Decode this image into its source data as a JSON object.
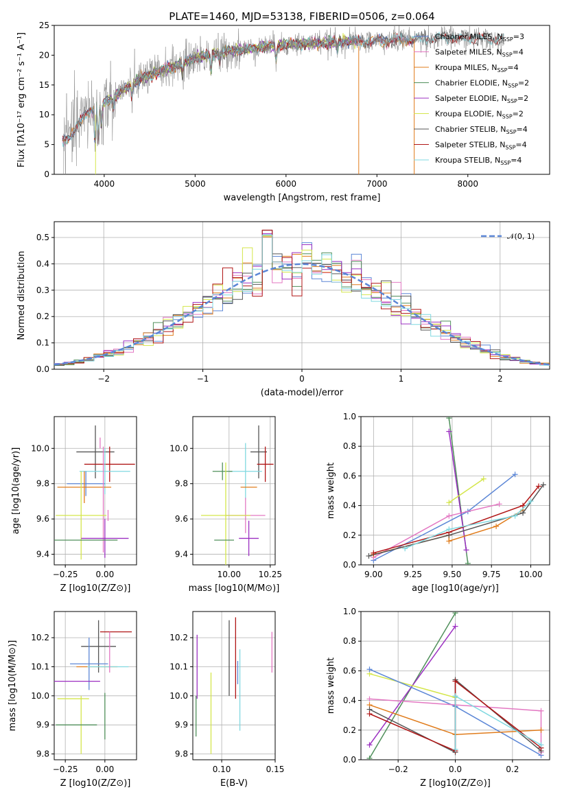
{
  "figure": {
    "title": "PLATE=1460, MJD=53138, FIBERID=0506, z=0.064"
  },
  "colors": {
    "chabrier_miles": "#5b86d6",
    "salpeter_miles": "#e377c2",
    "kroupa_miles": "#e07b1a",
    "chabrier_elodie": "#4f8f5a",
    "salpeter_elodie": "#9b2fc1",
    "kroupa_elodie": "#d4e64a",
    "chabrier_stelib": "#555555",
    "salpeter_stelib": "#b01515",
    "kroupa_stelib": "#7fd8e0",
    "data_gray": "#808080",
    "normal": "#5b86d6"
  },
  "chart_data": [
    {
      "id": "spectrum",
      "type": "line",
      "title": "PLATE=1460, MJD=53138, FIBERID=0506, z=0.064",
      "xlabel": "wavelength [Angstrom, rest frame]",
      "ylabel": "Flux [fλ10⁻¹⁷ erg cm⁻² s⁻¹ A⁻¹]",
      "xlim": [
        3450,
        8900
      ],
      "ylim": [
        0,
        25
      ],
      "xticks": [
        4000,
        5000,
        6000,
        7000,
        8000
      ],
      "yticks": [
        0,
        5,
        10,
        15,
        20,
        25
      ],
      "grid": false,
      "legend_position": "upper right",
      "continuum": {
        "x": [
          3550,
          3700,
          3850,
          3950,
          4050,
          4200,
          4400,
          4600,
          4800,
          5000,
          5200,
          5400,
          5600,
          5800,
          6000,
          6300,
          6600,
          6900,
          7200,
          7500,
          7800,
          8100,
          8400
        ],
        "y": [
          5.5,
          8.0,
          11.0,
          11.5,
          12.5,
          14.0,
          16.0,
          17.2,
          18.3,
          19.5,
          20.2,
          20.8,
          21.0,
          21.5,
          21.8,
          22.0,
          22.3,
          22.3,
          22.5,
          22.8,
          22.9,
          22.8,
          22.5
        ]
      },
      "legend": [
        {
          "label": "Chabrier MILES, N_SSP=3",
          "text": "Chabrier MILES, N",
          "sub": "SSP",
          "tail": "=3",
          "color_key": "chabrier_miles"
        },
        {
          "label": "Salpeter MILES, N_SSP=4",
          "text": "Salpeter MILES, N",
          "sub": "SSP",
          "tail": "=4",
          "color_key": "salpeter_miles"
        },
        {
          "label": "Kroupa MILES, N_SSP=4",
          "text": "Kroupa MILES, N",
          "sub": "SSP",
          "tail": "=4",
          "color_key": "kroupa_miles"
        },
        {
          "label": "Chabrier ELODIE, N_SSP=2",
          "text": "Chabrier ELODIE, N",
          "sub": "SSP",
          "tail": "=2",
          "color_key": "chabrier_elodie"
        },
        {
          "label": "Salpeter ELODIE, N_SSP=2",
          "text": "Salpeter ELODIE, N",
          "sub": "SSP",
          "tail": "=2",
          "color_key": "salpeter_elodie"
        },
        {
          "label": "Kroupa ELODIE, N_SSP=2",
          "text": "Kroupa ELODIE, N",
          "sub": "SSP",
          "tail": "=2",
          "color_key": "kroupa_elodie"
        },
        {
          "label": "Chabrier STELIB, N_SSP=4",
          "text": "Chabrier STELIB, N",
          "sub": "SSP",
          "tail": "=4",
          "color_key": "chabrier_stelib"
        },
        {
          "label": "Salpeter STELIB, N_SSP=4",
          "text": "Salpeter STELIB, N",
          "sub": "SSP",
          "tail": "=4",
          "color_key": "salpeter_stelib"
        },
        {
          "label": "Kroupa STELIB, N_SSP=4",
          "text": "Kroupa STELIB, N",
          "sub": "SSP",
          "tail": "=4",
          "color_key": "kroupa_stelib"
        }
      ]
    },
    {
      "id": "residuals",
      "type": "histogram",
      "xlabel": "(data-model)/error",
      "ylabel": "Normed distribution",
      "xlim": [
        -2.5,
        2.5
      ],
      "ylim": [
        0,
        0.56
      ],
      "xticks": [
        -2,
        -1,
        0,
        1,
        2
      ],
      "yticks": [
        0.0,
        0.1,
        0.2,
        0.3,
        0.4,
        0.5
      ],
      "grid": true,
      "bin_width": 0.1,
      "legend": {
        "label": "𝒩(0, 1)",
        "position": "upper right"
      },
      "normal_curve": {
        "mean": 0,
        "sigma": 1,
        "style": "dashed"
      }
    },
    {
      "id": "age_vs_Z",
      "type": "errorbar",
      "xlabel": "Z [log10(Z/Z⊙)]",
      "ylabel": "age [log10(age/yr)]",
      "xlim": [
        -0.32,
        0.2
      ],
      "ylim": [
        9.34,
        10.18
      ],
      "xticks": [
        -0.25,
        0.0
      ],
      "xtick_labels": [
        "−0.25",
        "0.00"
      ],
      "yticks": [
        9.4,
        9.6,
        9.8,
        10.0
      ],
      "grid": true,
      "points": [
        {
          "x": -0.03,
          "y": 10.03,
          "xerr": 0.0,
          "yerr": 0.0,
          "color_key": "salpeter_miles"
        },
        {
          "x": -0.06,
          "y": 9.98,
          "xerr": 0.12,
          "yerr": 0.15,
          "color_key": "chabrier_stelib"
        },
        {
          "x": 0.03,
          "y": 9.91,
          "xerr": 0.16,
          "yerr": 0.1,
          "color_key": "salpeter_stelib"
        },
        {
          "x": 0.0,
          "y": 9.87,
          "xerr": 0.16,
          "yerr": 0.13,
          "color_key": "kroupa_stelib"
        },
        {
          "x": -0.12,
          "y": 9.8,
          "xerr": 0.12,
          "yerr": 0.07,
          "color_key": "chabrier_miles"
        },
        {
          "x": -0.13,
          "y": 9.78,
          "xerr": 0.17,
          "yerr": 0.09,
          "color_key": "kroupa_miles"
        },
        {
          "x": -0.01,
          "y": 9.71,
          "xerr": 0.0,
          "yerr": 0.3,
          "color_key": "salpeter_miles"
        },
        {
          "x": -0.15,
          "y": 9.62,
          "xerr": 0.16,
          "yerr": 0.25,
          "color_key": "kroupa_elodie"
        },
        {
          "x": 0.02,
          "y": 9.62,
          "xerr": 0.0,
          "yerr": 0.0,
          "color_key": "salpeter_miles"
        },
        {
          "x": 0.0,
          "y": 9.49,
          "xerr": 0.15,
          "yerr": 0.11,
          "color_key": "salpeter_elodie"
        },
        {
          "x": -0.12,
          "y": 9.48,
          "xerr": 0.2,
          "yerr": 0.0,
          "color_key": "chabrier_elodie"
        }
      ]
    },
    {
      "id": "age_vs_mass",
      "type": "errorbar",
      "xlabel": "mass [log10(M/M⊙)]",
      "ylabel": "",
      "xlim": [
        9.78,
        10.28
      ],
      "ylim": [
        9.34,
        10.18
      ],
      "xticks": [
        10.0,
        10.25
      ],
      "xtick_labels": [
        "10.00",
        "10.25"
      ],
      "yticks": [
        9.4,
        9.6,
        9.8,
        10.0
      ],
      "grid": true,
      "points": [
        {
          "x": 10.18,
          "y": 9.98,
          "xerr": 0.05,
          "yerr": 0.15,
          "color_key": "chabrier_stelib"
        },
        {
          "x": 10.22,
          "y": 9.91,
          "xerr": 0.05,
          "yerr": 0.1,
          "color_key": "salpeter_stelib"
        },
        {
          "x": 10.1,
          "y": 9.87,
          "xerr": 0.1,
          "yerr": 0.16,
          "color_key": "kroupa_stelib"
        },
        {
          "x": 9.96,
          "y": 9.87,
          "xerr": 0.06,
          "yerr": 0.05,
          "color_key": "chabrier_elodie"
        },
        {
          "x": 10.12,
          "y": 9.78,
          "xerr": 0.05,
          "yerr": 0.0,
          "color_key": "kroupa_miles"
        },
        {
          "x": 10.1,
          "y": 9.62,
          "xerr": 0.12,
          "yerr": 0.1,
          "color_key": "salpeter_miles"
        },
        {
          "x": 9.98,
          "y": 9.62,
          "xerr": 0.15,
          "yerr": 0.3,
          "color_key": "kroupa_elodie"
        },
        {
          "x": 10.12,
          "y": 9.49,
          "xerr": 0.06,
          "yerr": 0.1,
          "color_key": "salpeter_elodie"
        },
        {
          "x": 9.97,
          "y": 9.48,
          "xerr": 0.06,
          "yerr": 0.0,
          "color_key": "chabrier_elodie"
        }
      ]
    },
    {
      "id": "massweight_vs_age",
      "type": "line",
      "xlabel": "age [log10(age/yr)]",
      "ylabel": "mass weight",
      "xlim": [
        8.92,
        10.12
      ],
      "ylim": [
        0.0,
        1.0
      ],
      "xticks": [
        9.0,
        9.25,
        9.5,
        9.75,
        10.0
      ],
      "xtick_labels": [
        "9.00",
        "9.25",
        "9.50",
        "9.75",
        "10.00"
      ],
      "yticks": [
        0.0,
        0.2,
        0.4,
        0.6,
        0.8,
        1.0
      ],
      "grid": true,
      "series": [
        {
          "color_key": "chabrier_elodie",
          "x": [
            9.48,
            9.6
          ],
          "y": [
            0.99,
            0.01
          ]
        },
        {
          "color_key": "salpeter_elodie",
          "x": [
            9.48,
            9.59
          ],
          "y": [
            0.9,
            0.1
          ]
        },
        {
          "color_key": "kroupa_elodie",
          "x": [
            9.48,
            9.7
          ],
          "y": [
            0.42,
            0.58
          ]
        },
        {
          "color_key": "chabrier_miles",
          "x": [
            9.0,
            9.6,
            9.9
          ],
          "y": [
            0.03,
            0.36,
            0.61
          ]
        },
        {
          "color_key": "salpeter_miles",
          "x": [
            9.0,
            9.48,
            9.8
          ],
          "y": [
            0.05,
            0.33,
            0.41
          ]
        },
        {
          "color_key": "kroupa_miles",
          "x": [
            9.0,
            9.48,
            9.48,
            9.78,
            9.95
          ],
          "y": [
            0.07,
            0.2,
            0.16,
            0.26,
            0.37
          ]
        },
        {
          "color_key": "chabrier_stelib",
          "x": [
            8.97,
            9.48,
            9.95,
            10.08
          ],
          "y": [
            0.06,
            0.2,
            0.35,
            0.54
          ]
        },
        {
          "color_key": "salpeter_stelib",
          "x": [
            9.0,
            9.48,
            9.95,
            10.05
          ],
          "y": [
            0.08,
            0.22,
            0.4,
            0.53
          ]
        },
        {
          "color_key": "kroupa_stelib",
          "x": [
            9.2,
            9.48,
            9.9,
            10.0
          ],
          "y": [
            0.11,
            0.24,
            0.33,
            0.43
          ]
        }
      ]
    },
    {
      "id": "mass_vs_Z",
      "type": "errorbar",
      "xlabel": "Z [log10(Z/Z⊙)]",
      "ylabel": "mass [log10(M/M⊙)]",
      "xlim": [
        -0.32,
        0.2
      ],
      "ylim": [
        9.78,
        10.29
      ],
      "xticks": [
        -0.25,
        0.0
      ],
      "xtick_labels": [
        "−0.25",
        "0.00"
      ],
      "yticks": [
        9.8,
        9.9,
        10.0,
        10.1,
        10.2
      ],
      "grid": true,
      "points": [
        {
          "x": 0.07,
          "y": 10.22,
          "xerr": 0.1,
          "yerr": 0.0,
          "color_key": "salpeter_stelib"
        },
        {
          "x": -0.04,
          "y": 10.17,
          "xerr": 0.11,
          "yerr": 0.09,
          "color_key": "chabrier_stelib"
        },
        {
          "x": -0.1,
          "y": 10.11,
          "xerr": 0.12,
          "yerr": 0.09,
          "color_key": "chabrier_miles"
        },
        {
          "x": -0.05,
          "y": 10.1,
          "xerr": 0.13,
          "yerr": 0.0,
          "color_key": "kroupa_miles"
        },
        {
          "x": 0.02,
          "y": 10.1,
          "xerr": 0.13,
          "yerr": 0.0,
          "color_key": "kroupa_stelib"
        },
        {
          "x": 0.03,
          "y": 10.15,
          "xerr": 0.0,
          "yerr": 0.07,
          "color_key": "salpeter_miles"
        },
        {
          "x": -0.18,
          "y": 10.05,
          "xerr": 0.15,
          "yerr": 0.0,
          "color_key": "salpeter_elodie"
        },
        {
          "x": -0.2,
          "y": 9.99,
          "xerr": 0.1,
          "yerr": 0.0,
          "color_key": "kroupa_elodie"
        },
        {
          "x": -0.15,
          "y": 9.9,
          "xerr": 0.0,
          "yerr": 0.1,
          "color_key": "kroupa_elodie"
        },
        {
          "x": -0.18,
          "y": 9.9,
          "xerr": 0.13,
          "yerr": 0.0,
          "color_key": "chabrier_elodie"
        },
        {
          "x": 0.0,
          "y": 9.93,
          "xerr": 0.0,
          "yerr": 0.08,
          "color_key": "chabrier_elodie"
        }
      ]
    },
    {
      "id": "mass_vs_EBV",
      "type": "errorbar",
      "xlabel": "E(B-V)",
      "ylabel": "",
      "xlim": [
        0.073,
        0.15
      ],
      "ylim": [
        9.78,
        10.29
      ],
      "xticks": [
        0.1,
        0.15
      ],
      "xtick_labels": [
        "0.10",
        "0.15"
      ],
      "yticks": [
        9.8,
        9.9,
        10.0,
        10.1,
        10.2
      ],
      "grid": true,
      "points": [
        {
          "x": 0.077,
          "y": 10.1,
          "xerr": 0.0,
          "yerr": 0.11,
          "color_key": "salpeter_elodie"
        },
        {
          "x": 0.076,
          "y": 9.93,
          "xerr": 0.0,
          "yerr": 0.07,
          "color_key": "chabrier_elodie"
        },
        {
          "x": 0.09,
          "y": 9.94,
          "xerr": 0.0,
          "yerr": 0.14,
          "color_key": "kroupa_elodie"
        },
        {
          "x": 0.107,
          "y": 10.13,
          "xerr": 0.0,
          "yerr": 0.13,
          "color_key": "chabrier_stelib"
        },
        {
          "x": 0.113,
          "y": 10.13,
          "xerr": 0.0,
          "yerr": 0.14,
          "color_key": "salpeter_stelib"
        },
        {
          "x": 0.115,
          "y": 10.08,
          "xerr": 0.0,
          "yerr": 0.04,
          "color_key": "chabrier_miles"
        },
        {
          "x": 0.117,
          "y": 10.02,
          "xerr": 0.0,
          "yerr": 0.14,
          "color_key": "kroupa_stelib"
        },
        {
          "x": 0.147,
          "y": 10.15,
          "xerr": 0.0,
          "yerr": 0.07,
          "color_key": "salpeter_miles"
        }
      ]
    },
    {
      "id": "massweight_vs_Z",
      "type": "line",
      "xlabel": "Z [log10(Z/Z⊙)]",
      "ylabel": "mass weight",
      "xlim": [
        -0.33,
        0.33
      ],
      "ylim": [
        0.0,
        1.0
      ],
      "xticks": [
        -0.2,
        0.0,
        0.2
      ],
      "xtick_labels": [
        "−0.2",
        "0.0",
        "0.2"
      ],
      "yticks": [
        0.0,
        0.2,
        0.4,
        0.6,
        0.8,
        1.0
      ],
      "grid": true,
      "series": [
        {
          "color_key": "chabrier_elodie",
          "x": [
            -0.3,
            0.0
          ],
          "y": [
            0.01,
            0.99
          ]
        },
        {
          "color_key": "salpeter_elodie",
          "x": [
            -0.3,
            0.0
          ],
          "y": [
            0.1,
            0.9
          ]
        },
        {
          "color_key": "kroupa_elodie",
          "x": [
            -0.3,
            0.0
          ],
          "y": [
            0.58,
            0.42
          ]
        },
        {
          "color_key": "chabrier_miles",
          "x": [
            -0.3,
            0.0,
            0.3
          ],
          "y": [
            0.61,
            0.36,
            0.03
          ]
        },
        {
          "color_key": "salpeter_miles",
          "x": [
            -0.3,
            0.3,
            0.3
          ],
          "y": [
            0.41,
            0.33,
            0.05
          ]
        },
        {
          "color_key": "kroupa_miles",
          "x": [
            -0.3,
            0.0,
            0.3
          ],
          "y": [
            0.37,
            0.17,
            0.2
          ]
        },
        {
          "color_key": "chabrier_stelib",
          "x": [
            -0.3,
            0.0,
            0.0,
            0.3
          ],
          "y": [
            0.34,
            0.05,
            0.54,
            0.06
          ]
        },
        {
          "color_key": "salpeter_stelib",
          "x": [
            -0.3,
            0.0,
            0.0,
            0.3
          ],
          "y": [
            0.31,
            0.06,
            0.53,
            0.08
          ]
        },
        {
          "color_key": "kroupa_stelib",
          "x": [
            0.0,
            0.0,
            0.3
          ],
          "y": [
            0.07,
            0.43,
            0.1
          ]
        }
      ]
    }
  ]
}
